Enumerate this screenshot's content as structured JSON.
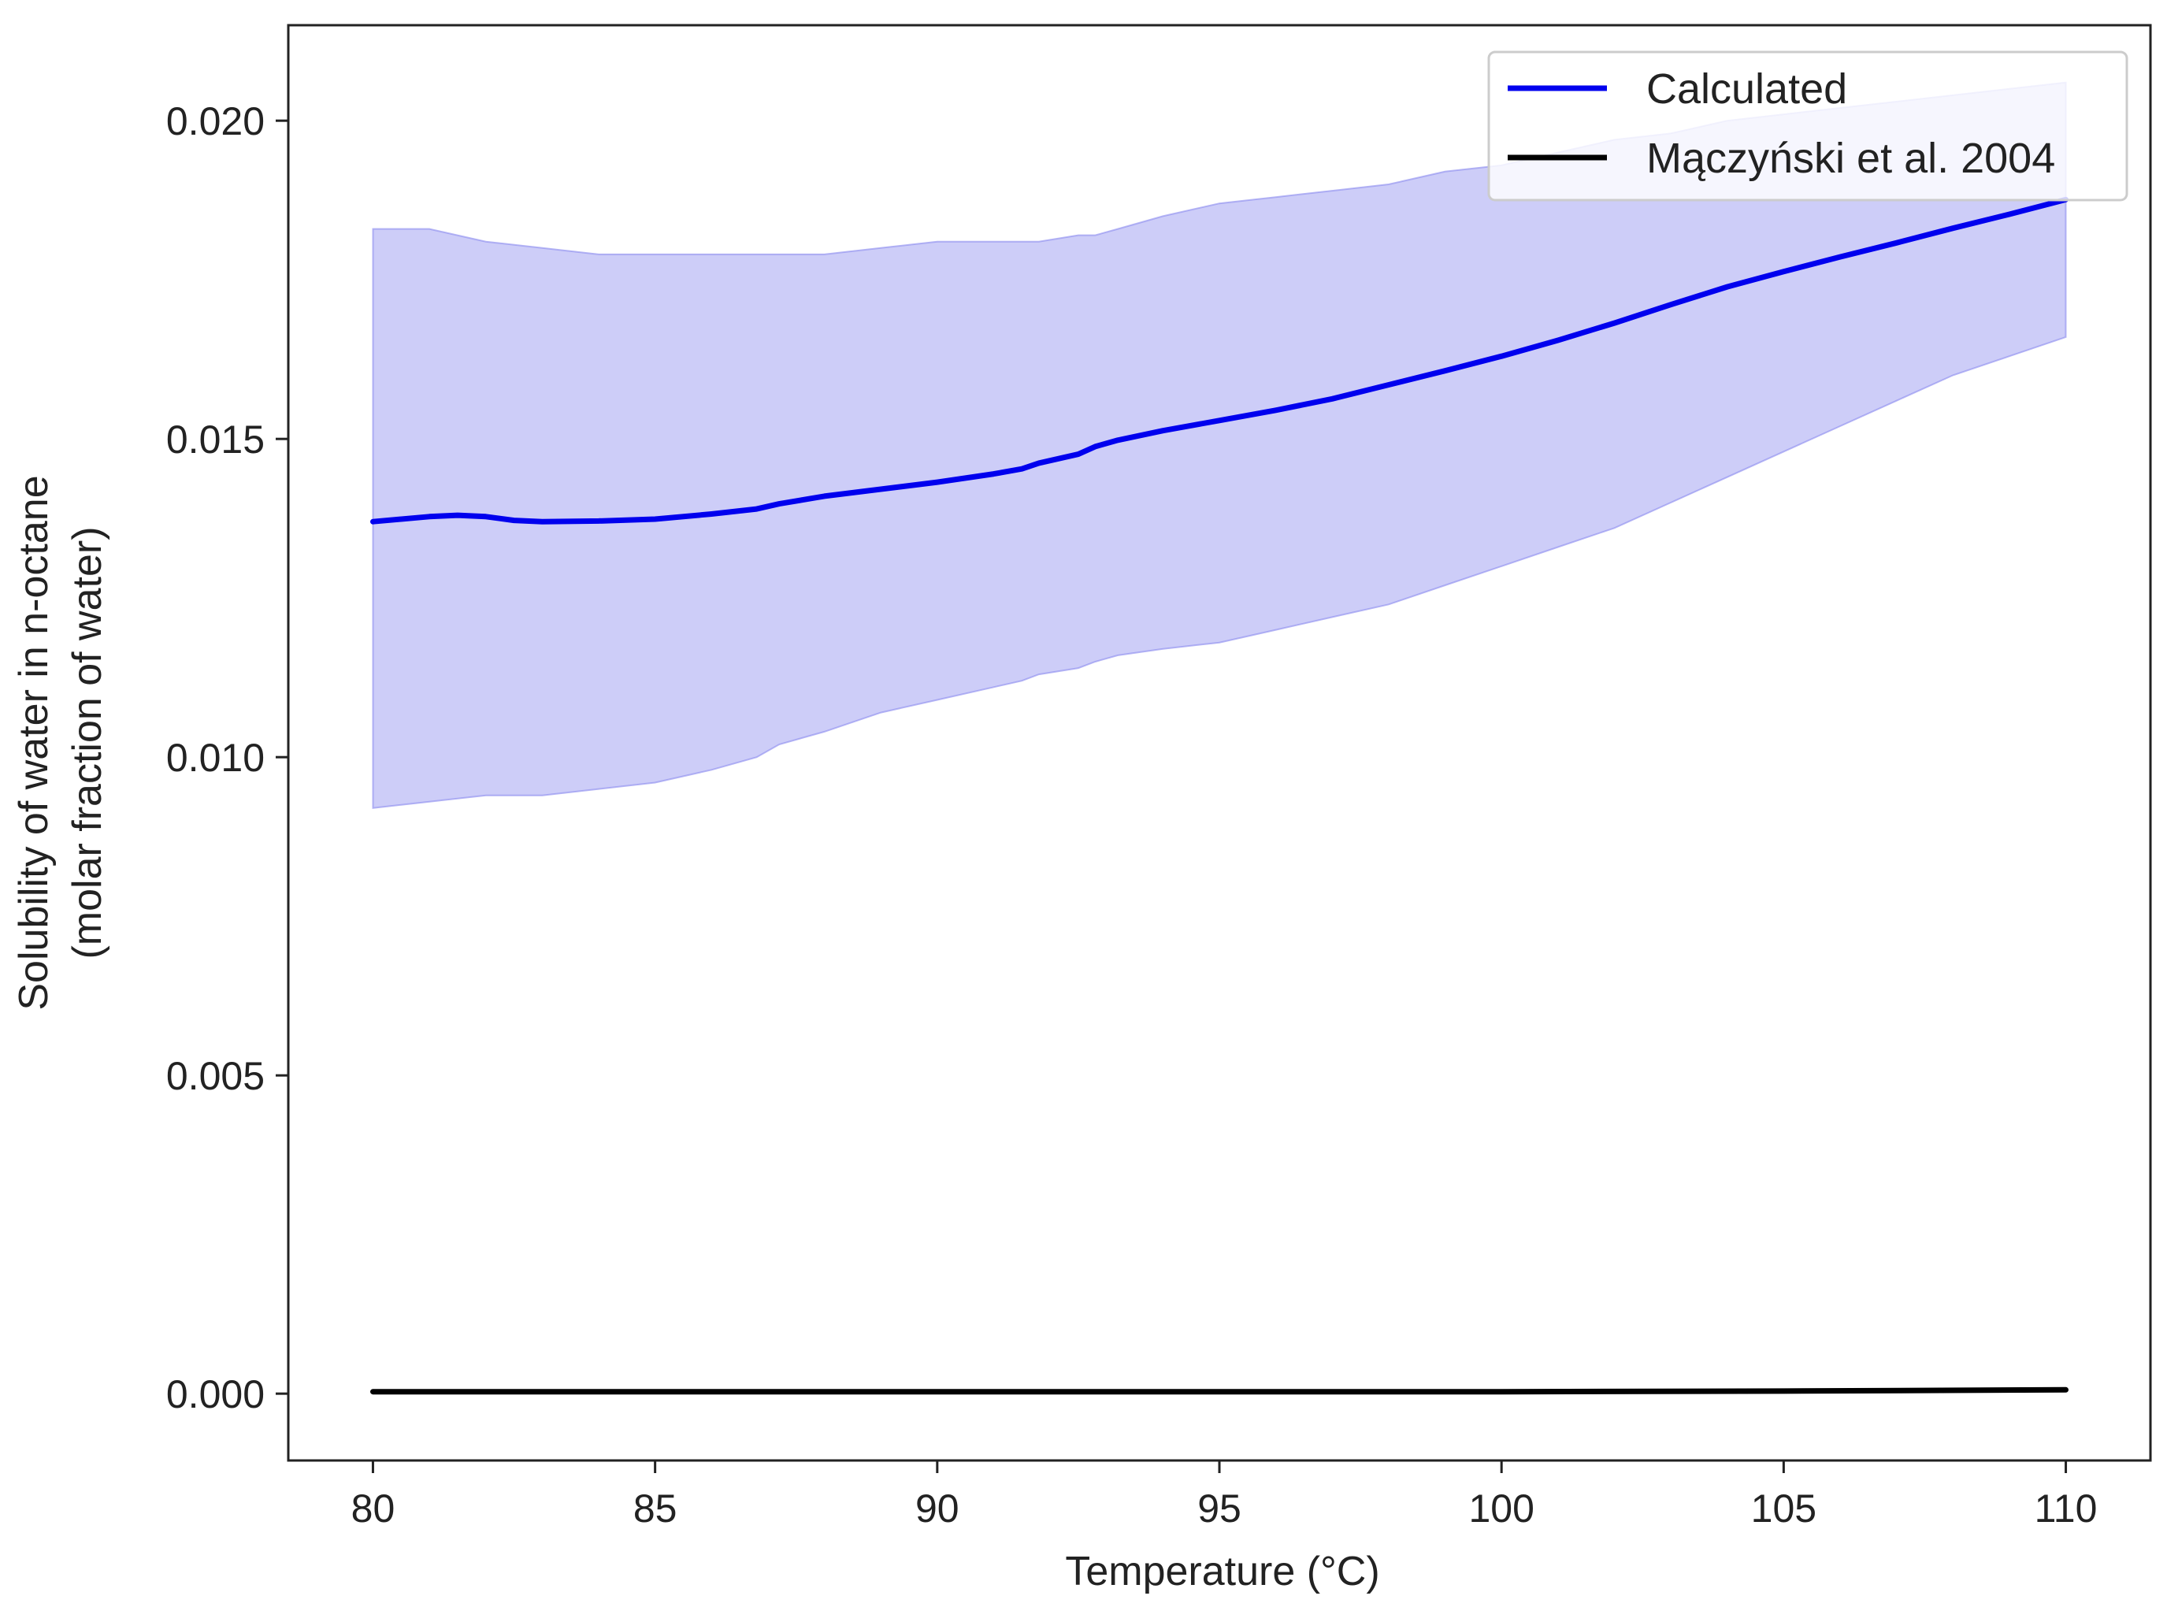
{
  "chart_data": {
    "type": "line",
    "title": "",
    "xlabel": "Temperature (°C)",
    "ylabel_lines": [
      "Solubility of water in n-octane",
      "(molar fraction of water)"
    ],
    "xlim": [
      78.5,
      111.5
    ],
    "ylim": [
      -0.00105,
      0.0215
    ],
    "x_ticks": [
      80,
      85,
      90,
      95,
      100,
      105,
      110
    ],
    "x_tick_labels": [
      "80",
      "85",
      "90",
      "95",
      "100",
      "105",
      "110"
    ],
    "y_ticks": [
      0.0,
      0.005,
      0.01,
      0.015,
      0.02
    ],
    "y_tick_labels": [
      "0.000",
      "0.005",
      "0.010",
      "0.015",
      "0.020"
    ],
    "grid": false,
    "legend_position": "top-right",
    "series": [
      {
        "name": "Calculated",
        "color": "#0000ee",
        "x": [
          80,
          81,
          81.5,
          82,
          82.5,
          83,
          84,
          85,
          86,
          86.8,
          87.2,
          88,
          89,
          90,
          91,
          91.5,
          91.8,
          92.5,
          92.8,
          93.2,
          94,
          95,
          96,
          97,
          98,
          99,
          100,
          101,
          102,
          103,
          104,
          105,
          106,
          107,
          108,
          109,
          110
        ],
        "y": [
          0.0137,
          0.01378,
          0.0138,
          0.01378,
          0.01372,
          0.0137,
          0.01371,
          0.01374,
          0.01382,
          0.0139,
          0.01398,
          0.0141,
          0.01421,
          0.01432,
          0.01445,
          0.01453,
          0.01462,
          0.01476,
          0.01488,
          0.01498,
          0.01513,
          0.01529,
          0.01545,
          0.01563,
          0.01585,
          0.01607,
          0.0163,
          0.01655,
          0.01682,
          0.01711,
          0.01739,
          0.01763,
          0.01786,
          0.01808,
          0.01831,
          0.01853,
          0.01876
        ]
      },
      {
        "name": "Mączyński et al. 2004",
        "color": "#000000",
        "x": [
          80,
          85,
          90,
          95,
          100,
          105,
          110
        ],
        "y": [
          3e-05,
          3e-05,
          3e-05,
          3e-05,
          3e-05,
          4e-05,
          6e-05
        ]
      }
    ],
    "band": {
      "color": "#8888ee",
      "x": [
        80,
        81,
        82,
        83,
        84,
        85,
        86,
        86.8,
        87.2,
        88,
        89,
        90,
        91,
        91.5,
        91.8,
        92.5,
        92.8,
        93.2,
        94,
        95,
        96,
        97,
        98,
        99,
        100,
        101,
        102,
        103,
        104,
        105,
        106,
        107,
        108,
        109,
        110
      ],
      "upper": [
        0.0183,
        0.0183,
        0.0181,
        0.018,
        0.0179,
        0.0179,
        0.0179,
        0.0179,
        0.0179,
        0.0179,
        0.018,
        0.0181,
        0.0181,
        0.0181,
        0.0181,
        0.0182,
        0.0182,
        0.0183,
        0.0185,
        0.0187,
        0.0188,
        0.0189,
        0.019,
        0.0192,
        0.0193,
        0.0195,
        0.0197,
        0.0198,
        0.02,
        0.0201,
        0.0202,
        0.0203,
        0.0204,
        0.0205,
        0.0206
      ],
      "lower": [
        0.0092,
        0.0093,
        0.0094,
        0.0094,
        0.0095,
        0.0096,
        0.0098,
        0.01,
        0.0102,
        0.0104,
        0.0107,
        0.0109,
        0.0111,
        0.0112,
        0.0113,
        0.0114,
        0.0115,
        0.0116,
        0.0117,
        0.0118,
        0.012,
        0.0122,
        0.0124,
        0.0127,
        0.013,
        0.0133,
        0.0136,
        0.014,
        0.0144,
        0.0148,
        0.0152,
        0.0156,
        0.016,
        0.0163,
        0.0166
      ]
    }
  }
}
